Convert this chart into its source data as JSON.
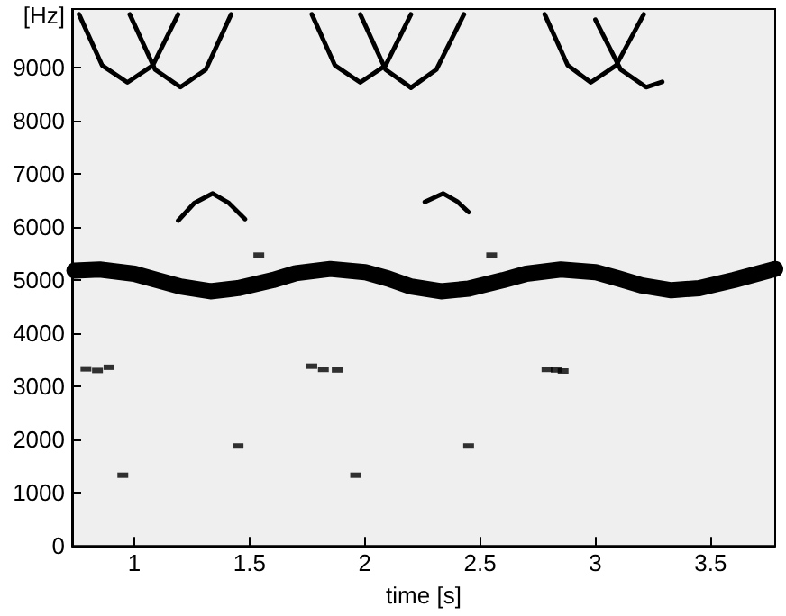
{
  "chart_data": {
    "type": "line",
    "xlabel": "time [s]",
    "ylabel": "[Hz]",
    "xlim": [
      0.73,
      3.78
    ],
    "ylim": [
      0,
      10100
    ],
    "xticks": [
      1,
      1.5,
      2,
      2.5,
      3,
      3.5
    ],
    "yticks": [
      0,
      1000,
      2000,
      3000,
      4000,
      5000,
      6000,
      7000,
      8000,
      9000
    ],
    "grid": false,
    "line_style": "solid",
    "marker": "none",
    "series": [
      {
        "color": "#000000",
        "x": [
          0.74,
          0.85,
          1.0,
          1.1,
          1.2,
          1.33,
          1.45,
          1.6,
          1.7,
          1.85,
          2.0,
          2.1,
          2.2,
          2.33,
          2.45,
          2.6,
          2.7,
          2.85,
          3.0,
          3.1,
          3.2,
          3.33,
          3.45,
          3.6,
          3.78
        ],
        "values": [
          5180,
          5200,
          5120,
          5000,
          4880,
          4790,
          4850,
          5000,
          5130,
          5210,
          5150,
          5030,
          4880,
          4790,
          4840,
          5000,
          5120,
          5200,
          5150,
          5030,
          4900,
          4810,
          4850,
          5000,
          5210
        ]
      },
      {
        "color": "#000000",
        "x": [
          0.76,
          0.86,
          0.97,
          1.08,
          1.19
        ],
        "values": [
          10000,
          9040,
          8720,
          9040,
          10000
        ]
      },
      {
        "color": "#000000",
        "x": [
          0.98,
          1.09,
          1.2,
          1.31,
          1.42
        ],
        "values": [
          10000,
          8960,
          8630,
          8960,
          10000
        ]
      },
      {
        "color": "#000000",
        "x": [
          1.77,
          1.87,
          1.98,
          2.09,
          2.2
        ],
        "values": [
          10000,
          9040,
          8720,
          9040,
          10000
        ]
      },
      {
        "color": "#000000",
        "x": [
          1.98,
          2.09,
          2.2,
          2.31,
          2.43
        ],
        "values": [
          10000,
          8960,
          8620,
          8960,
          10000
        ]
      },
      {
        "color": "#000000",
        "x": [
          2.78,
          2.88,
          2.98,
          3.09,
          3.21
        ],
        "values": [
          10000,
          9040,
          8720,
          9040,
          10000
        ]
      },
      {
        "color": "#000000",
        "x": [
          3.0,
          3.11,
          3.22,
          3.29
        ],
        "values": [
          9900,
          8960,
          8630,
          8730
        ]
      },
      {
        "color": "#000000",
        "x": [
          1.19,
          1.26,
          1.34,
          1.41,
          1.48
        ],
        "values": [
          6120,
          6450,
          6630,
          6450,
          6150
        ]
      },
      {
        "color": "#000000",
        "x": [
          2.26,
          2.34,
          2.4,
          2.45
        ],
        "values": [
          6470,
          6630,
          6480,
          6280
        ]
      },
      {
        "type": "scatter",
        "marker": "square",
        "color": "#000000",
        "x": [
          1.54,
          2.55,
          0.79,
          0.84,
          0.89,
          1.77,
          1.82,
          1.88,
          2.79,
          2.83,
          2.86,
          1.45,
          2.45,
          0.95,
          1.96
        ],
        "values": [
          5470,
          5470,
          3330,
          3300,
          3360,
          3380,
          3320,
          3310,
          3320,
          3310,
          3290,
          1880,
          1880,
          1330,
          1330
        ]
      }
    ]
  }
}
